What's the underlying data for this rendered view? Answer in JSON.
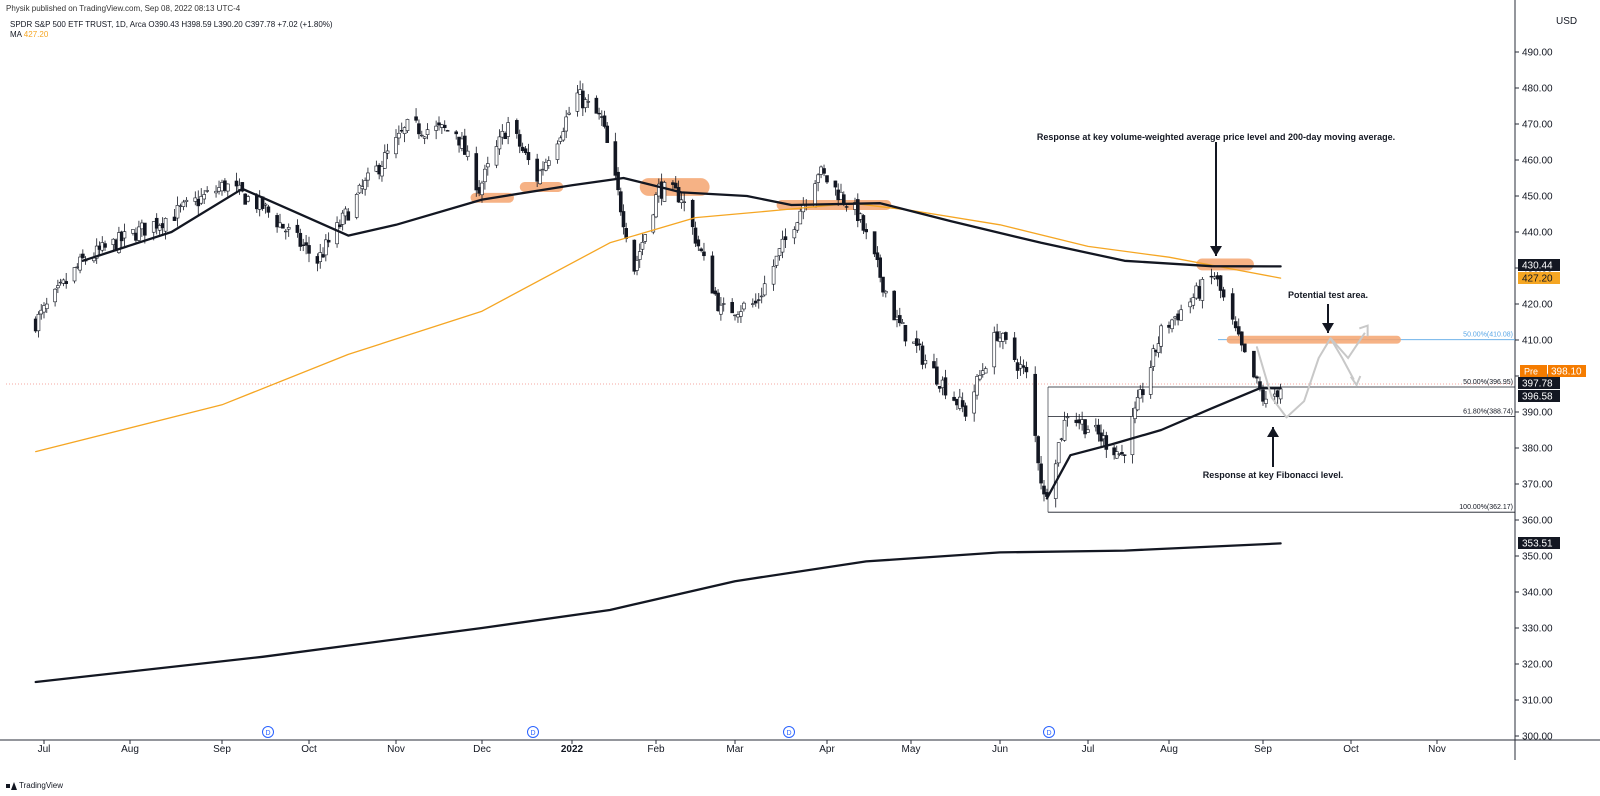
{
  "header": {
    "publish_line": "Physik published on TradingView.com, Sep 08, 2022 08:13 UTC-4",
    "symbol_line": "SPDR S&P 500 ETF TRUST, 1D, Arca  O390.43  H398.59  L390.20  C397.78  +7.02 (+1.80%)",
    "ma_label": "MA",
    "ma_value": "427.20"
  },
  "currency": "USD",
  "footer": {
    "brand": "TradingView"
  },
  "colors": {
    "up": "#ffffff",
    "down": "#131722",
    "ma200": "#f5a623",
    "highlight": "#f4a470",
    "fib_blue": "#5aa7e6"
  },
  "chart_data": {
    "type": "line",
    "title": "SPDR S&P 500 ETF TRUST, 1D, Arca",
    "ylim": [
      300,
      495
    ],
    "y_ticks": [
      "300.00",
      "310.00",
      "320.00",
      "330.00",
      "340.00",
      "350.00",
      "360.00",
      "370.00",
      "380.00",
      "390.00",
      "400.00",
      "410.00",
      "420.00",
      "430.00",
      "440.00",
      "450.00",
      "460.00",
      "470.00",
      "480.00",
      "490.00"
    ],
    "x_ticks": [
      "Jul",
      "Aug",
      "Sep",
      "Oct",
      "Nov",
      "Dec",
      "2022",
      "Feb",
      "Mar",
      "Apr",
      "May",
      "Jun",
      "Jul",
      "Aug",
      "Sep",
      "Oct",
      "Nov"
    ],
    "x_tick_bold": "2022",
    "price_path": [
      [
        "2021-06-28",
        415
      ],
      [
        "2021-07-15",
        432
      ],
      [
        "2021-08-01",
        439
      ],
      [
        "2021-08-16",
        445
      ],
      [
        "2021-09-02",
        453
      ],
      [
        "2021-09-15",
        447
      ],
      [
        "2021-10-04",
        432
      ],
      [
        "2021-10-20",
        452
      ],
      [
        "2021-11-05",
        469
      ],
      [
        "2021-11-22",
        468
      ],
      [
        "2021-11-30",
        452
      ],
      [
        "2021-12-10",
        470
      ],
      [
        "2021-12-20",
        455
      ],
      [
        "2022-01-03",
        478
      ],
      [
        "2022-01-12",
        471
      ],
      [
        "2022-01-24",
        430
      ],
      [
        "2022-02-02",
        452
      ],
      [
        "2022-02-10",
        450
      ],
      [
        "2022-02-24",
        418
      ],
      [
        "2022-03-08",
        420
      ],
      [
        "2022-03-29",
        457
      ],
      [
        "2022-04-12",
        445
      ],
      [
        "2022-04-26",
        415
      ],
      [
        "2022-05-10",
        400
      ],
      [
        "2022-05-20",
        390
      ],
      [
        "2022-05-31",
        412
      ],
      [
        "2022-06-10",
        400
      ],
      [
        "2022-06-16",
        366
      ],
      [
        "2022-06-24",
        390
      ],
      [
        "2022-07-14",
        378
      ],
      [
        "2022-07-29",
        412
      ],
      [
        "2022-08-16",
        428
      ],
      [
        "2022-08-26",
        405
      ],
      [
        "2022-09-02",
        392
      ],
      [
        "2022-09-07",
        397
      ]
    ],
    "series": [
      {
        "name": "MA",
        "color": "#f5a623",
        "points": [
          [
            "2021-06-28",
            379
          ],
          [
            "2021-09-01",
            392
          ],
          [
            "2021-10-15",
            406
          ],
          [
            "2021-12-01",
            418
          ],
          [
            "2022-01-15",
            437
          ],
          [
            "2022-02-15",
            444
          ],
          [
            "2022-03-15",
            446
          ],
          [
            "2022-04-10",
            448
          ],
          [
            "2022-05-01",
            446
          ],
          [
            "2022-06-01",
            442
          ],
          [
            "2022-07-01",
            436
          ],
          [
            "2022-08-01",
            433
          ],
          [
            "2022-08-20",
            430
          ],
          [
            "2022-09-07",
            427.2
          ]
        ]
      },
      {
        "color": "#131722",
        "points": [
          [
            "2021-07-15",
            432
          ],
          [
            "2021-08-15",
            440
          ],
          [
            "2021-09-08",
            452
          ],
          [
            "2021-09-25",
            446
          ],
          [
            "2021-10-15",
            439
          ],
          [
            "2021-11-01",
            442
          ],
          [
            "2021-12-01",
            449
          ],
          [
            "2022-01-01",
            453
          ],
          [
            "2022-01-20",
            455
          ],
          [
            "2022-02-10",
            451
          ],
          [
            "2022-03-05",
            450
          ],
          [
            "2022-03-20",
            447.5
          ],
          [
            "2022-04-20",
            448
          ],
          [
            "2022-05-15",
            443
          ],
          [
            "2022-06-15",
            437
          ],
          [
            "2022-07-15",
            432
          ],
          [
            "2022-08-15",
            430.5
          ],
          [
            "2022-09-07",
            430.44
          ]
        ]
      },
      {
        "color": "#131722",
        "points": [
          [
            "2022-06-17",
            366
          ],
          [
            "2022-06-25",
            378
          ],
          [
            "2022-07-10",
            381
          ],
          [
            "2022-07-29",
            385
          ],
          [
            "2022-08-15",
            391
          ],
          [
            "2022-08-31",
            396.6
          ],
          [
            "2022-09-07",
            396.58
          ]
        ]
      },
      {
        "color": "#131722",
        "points": [
          [
            "2021-06-28",
            315
          ],
          [
            "2021-09-15",
            322
          ],
          [
            "2021-12-01",
            330
          ],
          [
            "2022-01-15",
            335
          ],
          [
            "2022-03-01",
            343
          ],
          [
            "2022-04-15",
            348.5
          ],
          [
            "2022-06-01",
            351
          ],
          [
            "2022-07-15",
            351.5
          ],
          [
            "2022-09-07",
            353.51
          ]
        ]
      }
    ],
    "fib_levels": [
      {
        "label": "50.00%(410.08)",
        "value": 410.08,
        "color": "#5aa7e6"
      },
      {
        "label": "50.00%(396.95)",
        "value": 396.95,
        "color": "#131722"
      },
      {
        "label": "61.80%(388.74)",
        "value": 388.74,
        "color": "#131722"
      },
      {
        "label": "100.00%(362.17)",
        "value": 362.17,
        "color": "#131722"
      }
    ],
    "price_labels": [
      {
        "value": "430.44",
        "color": "#131722"
      },
      {
        "value": "427.20",
        "color": "#f5a623"
      },
      {
        "tag": "Pre",
        "value": "398.10",
        "color": "#f57c00"
      },
      {
        "value": "397.78",
        "color": "#131722"
      },
      {
        "value": "396.58",
        "color": "#131722"
      },
      {
        "value": "353.51",
        "color": "#131722"
      }
    ],
    "annotations": [
      "Response at key volume-weighted average price level and 200-day moving average.",
      "Potential test area.",
      "Response at key Fibonacci level."
    ],
    "dividend_markers": [
      "D",
      "D",
      "D",
      "D"
    ]
  }
}
